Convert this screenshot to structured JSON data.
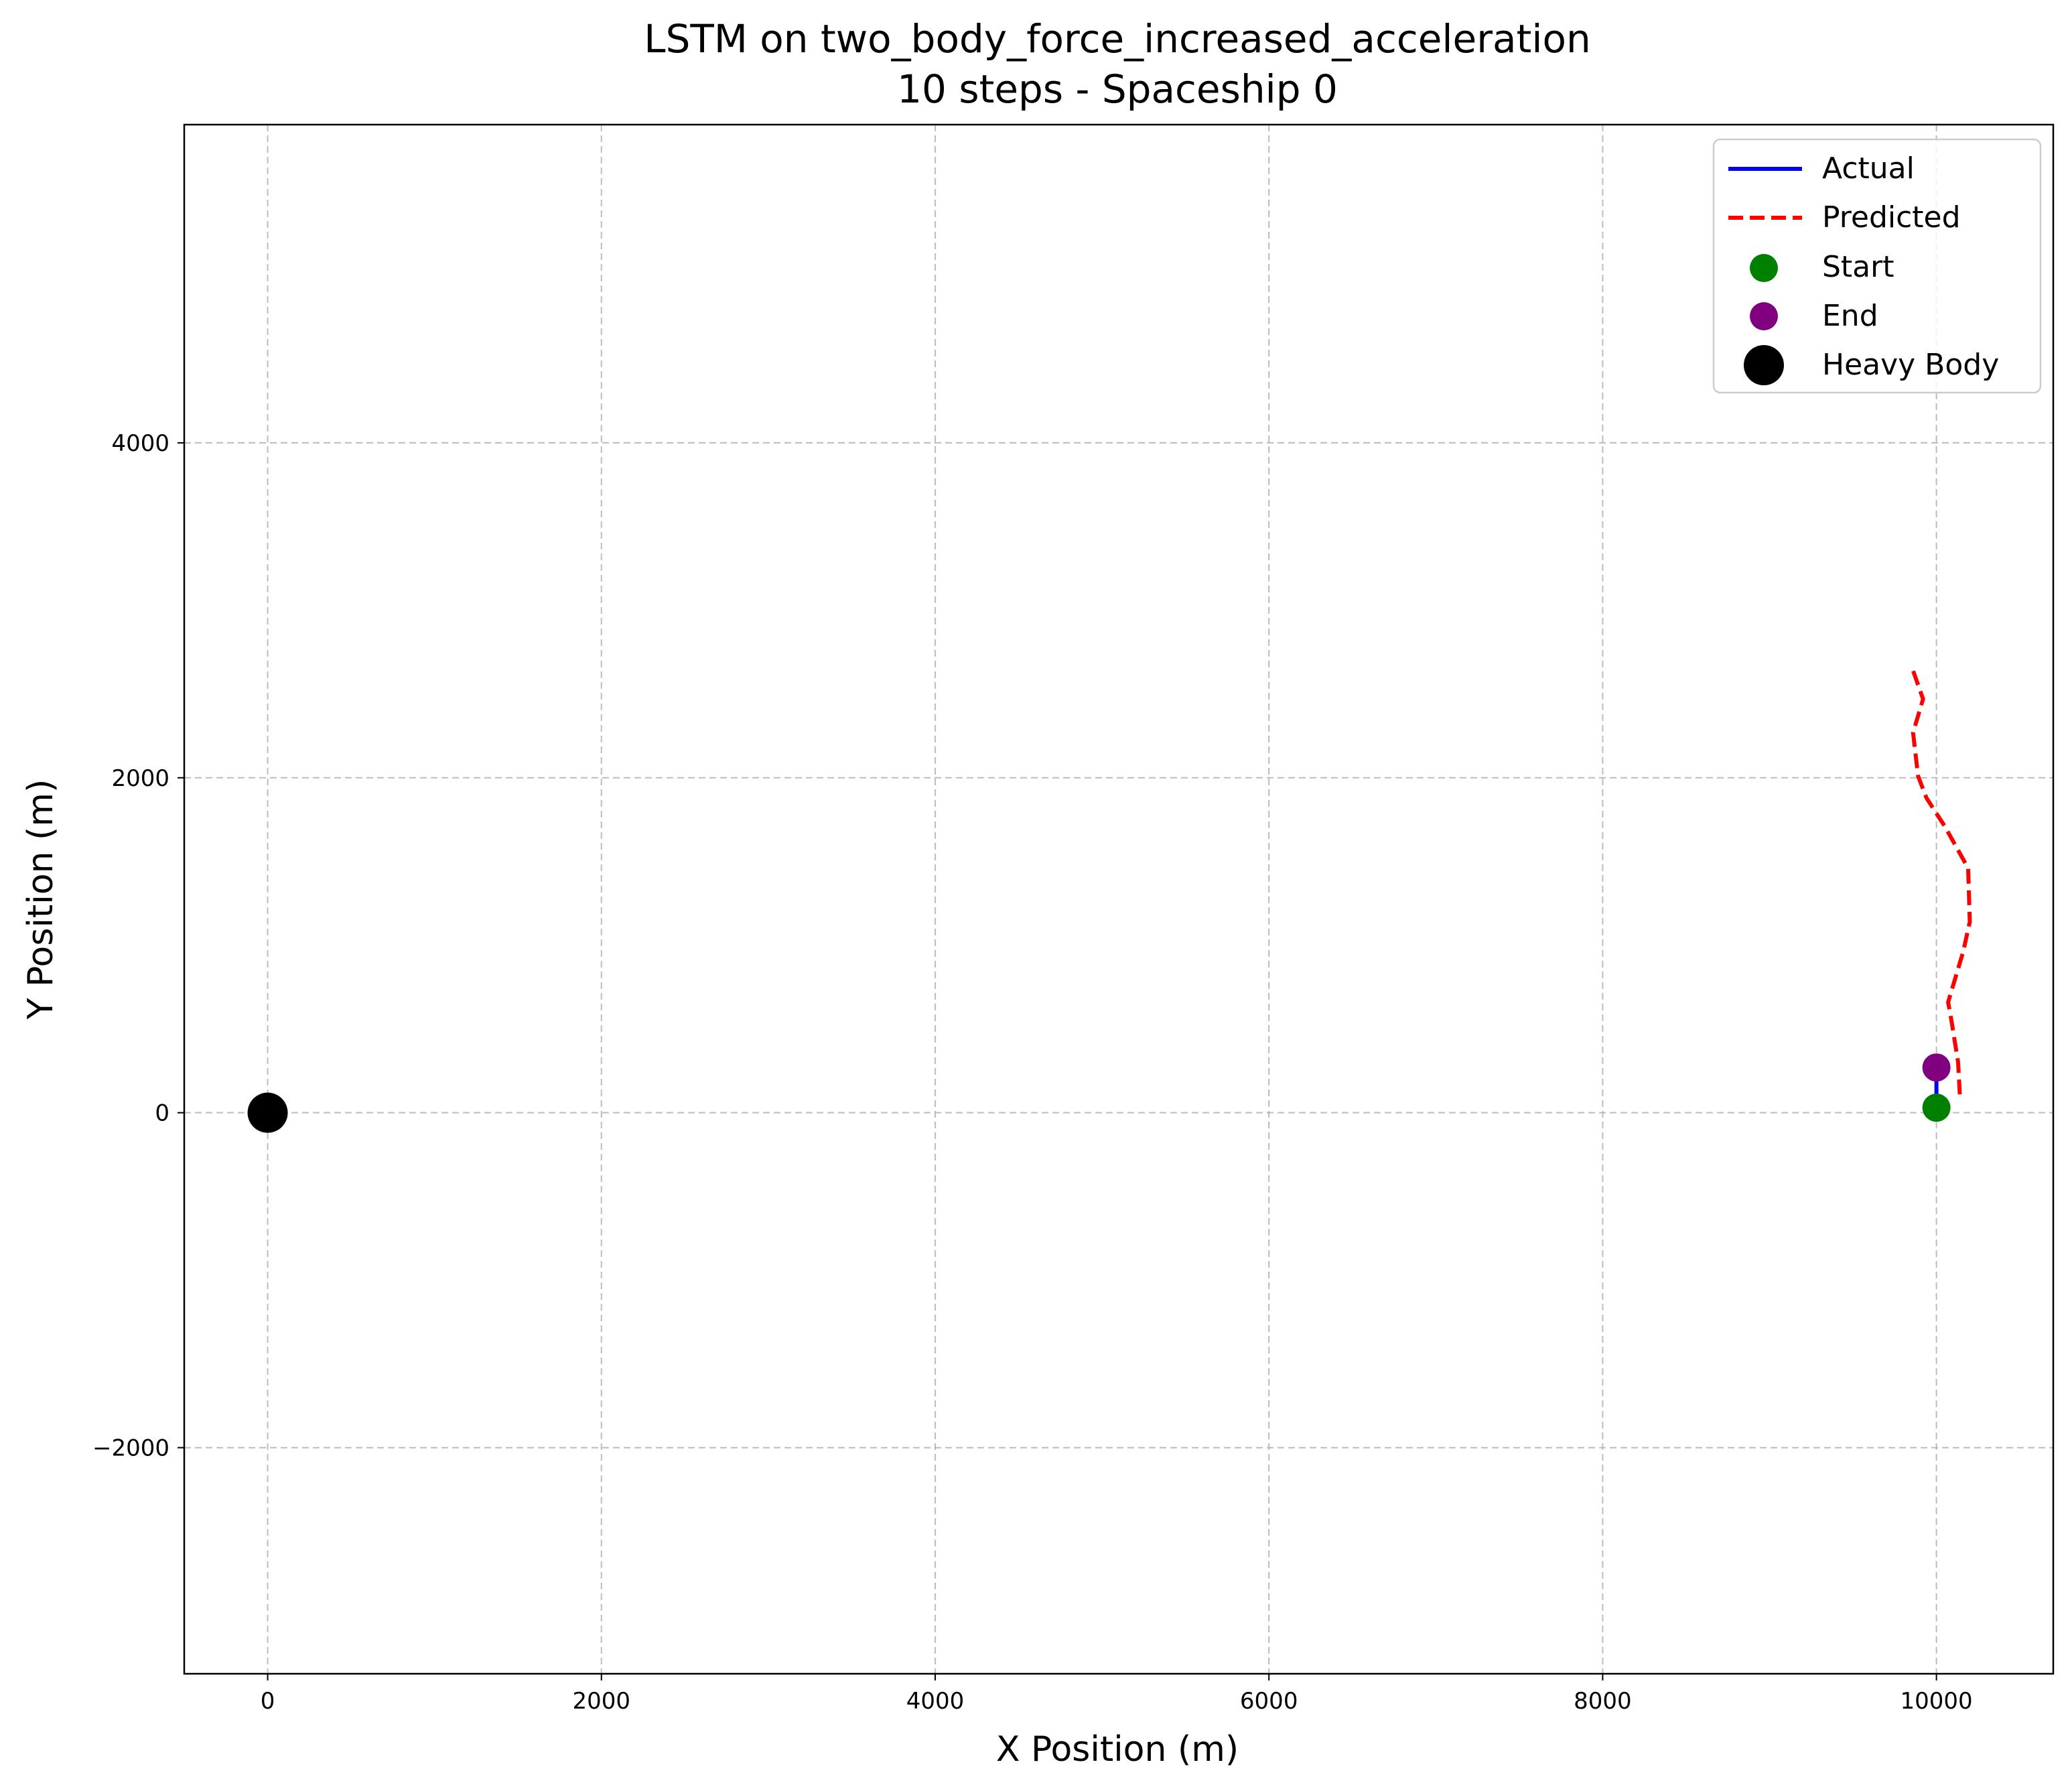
{
  "chart_data": {
    "type": "line",
    "title": "LSTM on two_body_force_increased_acceleration",
    "subtitle": "10 steps - Spaceship 0",
    "xlabel": "X Position (m)",
    "ylabel": "Y Position (m)",
    "xlim": [
      -500,
      10700
    ],
    "ylim": [
      -3350,
      5900
    ],
    "xticks": [
      0,
      2000,
      4000,
      6000,
      8000,
      10000
    ],
    "yticks": [
      -2000,
      0,
      2000,
      4000
    ],
    "grid": true,
    "legend_position": "top-right",
    "series": [
      {
        "name": "Actual",
        "kind": "line",
        "style": "solid",
        "color": "#0000ff",
        "x": [
          10000,
          10000
        ],
        "y": [
          30,
          270
        ]
      },
      {
        "name": "Predicted",
        "kind": "line",
        "style": "dashed",
        "color": "#ff0000",
        "x": [
          10140,
          10130,
          10090,
          10070,
          10160,
          10200,
          10190,
          10050,
          9940,
          9890,
          9860,
          9920,
          9860
        ],
        "y": [
          110,
          300,
          550,
          660,
          960,
          1140,
          1460,
          1710,
          1880,
          2010,
          2270,
          2470,
          2640
        ]
      },
      {
        "name": "Start",
        "kind": "marker",
        "color": "#008000",
        "x": [
          10000
        ],
        "y": [
          30
        ]
      },
      {
        "name": "End",
        "kind": "marker",
        "color": "#800080",
        "x": [
          10000
        ],
        "y": [
          270
        ]
      },
      {
        "name": "Heavy Body",
        "kind": "marker",
        "color": "#000000",
        "x": [
          0
        ],
        "y": [
          0
        ]
      }
    ]
  }
}
